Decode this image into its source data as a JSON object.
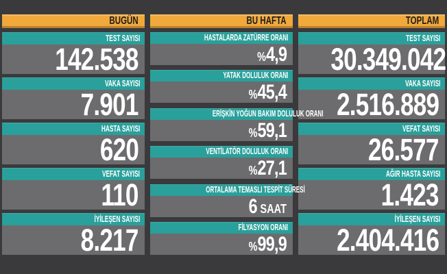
{
  "colors": {
    "background": "#3a3a3c",
    "header_bar": "#f1a93c",
    "header_text": "#1d1d1f",
    "label_bar": "#29a09b",
    "value_bar": "#6c6c6e",
    "value_text": "#ffffff"
  },
  "columns": [
    {
      "header": "BUGÜN",
      "stats": [
        {
          "label": "TEST SAYISI",
          "prefix": "",
          "value": "142.538",
          "suffix": ""
        },
        {
          "label": "VAKA SAYISI",
          "prefix": "",
          "value": "7.901",
          "suffix": ""
        },
        {
          "label": "HASTA SAYISI",
          "prefix": "",
          "value": "620",
          "suffix": ""
        },
        {
          "label": "VEFAT SAYISI",
          "prefix": "",
          "value": "110",
          "suffix": ""
        },
        {
          "label": "İYİLEŞEN SAYISI",
          "prefix": "",
          "value": "8.217",
          "suffix": ""
        }
      ]
    },
    {
      "header": "BU HAFTA",
      "stats": [
        {
          "label": "HASTALARDA ZATÜRRE ORANI",
          "prefix": "%",
          "value": "4,9",
          "suffix": ""
        },
        {
          "label": "YATAK DOLULUK ORANI",
          "prefix": "%",
          "value": "45,4",
          "suffix": ""
        },
        {
          "label": "ERİŞKİN YOĞUN BAKIM DOLULUK ORANI",
          "prefix": "%",
          "value": "59,1",
          "suffix": ""
        },
        {
          "label": "VENTİLATÖR DOLULUK ORANI",
          "prefix": "%",
          "value": "27,1",
          "suffix": ""
        },
        {
          "label": "ORTALAMA TEMASLI TESPİT SÜRESİ",
          "prefix": "",
          "value": "6",
          "suffix": "SAAT"
        },
        {
          "label": "FİLYASYON ORANI",
          "prefix": "%",
          "value": "99,9",
          "suffix": ""
        }
      ]
    },
    {
      "header": "TOPLAM",
      "stats": [
        {
          "label": "TEST SAYISI",
          "prefix": "",
          "value": "30.349.042",
          "suffix": ""
        },
        {
          "label": "VAKA SAYISI",
          "prefix": "",
          "value": "2.516.889",
          "suffix": ""
        },
        {
          "label": "VEFAT SAYISI",
          "prefix": "",
          "value": "26.577",
          "suffix": ""
        },
        {
          "label": "AĞIR HASTA SAYISI",
          "prefix": "",
          "value": "1.423",
          "suffix": ""
        },
        {
          "label": "İYİLEŞEN SAYISI",
          "prefix": "",
          "value": "2.404.416",
          "suffix": ""
        }
      ]
    }
  ],
  "chart_data": {
    "type": "table",
    "columns": [
      "BUGÜN",
      "BU HAFTA",
      "TOPLAM"
    ],
    "groups": [
      {
        "column": "BUGÜN",
        "rows": [
          {
            "label": "TEST SAYISI",
            "value": 142538,
            "display": "142.538"
          },
          {
            "label": "VAKA SAYISI",
            "value": 7901,
            "display": "7.901"
          },
          {
            "label": "HASTA SAYISI",
            "value": 620,
            "display": "620"
          },
          {
            "label": "VEFAT SAYISI",
            "value": 110,
            "display": "110"
          },
          {
            "label": "İYİLEŞEN SAYISI",
            "value": 8217,
            "display": "8.217"
          }
        ]
      },
      {
        "column": "BU HAFTA",
        "rows": [
          {
            "label": "HASTALARDA ZATÜRRE ORANI",
            "value": 4.9,
            "unit": "%",
            "display": "%4,9"
          },
          {
            "label": "YATAK DOLULUK ORANI",
            "value": 45.4,
            "unit": "%",
            "display": "%45,4"
          },
          {
            "label": "ERİŞKİN YOĞUN BAKIM DOLULUK ORANI",
            "value": 59.1,
            "unit": "%",
            "display": "%59,1"
          },
          {
            "label": "VENTİLATÖR DOLULUK ORANI",
            "value": 27.1,
            "unit": "%",
            "display": "%27,1"
          },
          {
            "label": "ORTALAMA TEMASLI TESPİT SÜRESİ",
            "value": 6,
            "unit": "SAAT",
            "display": "6 SAAT"
          },
          {
            "label": "FİLYASYON ORANI",
            "value": 99.9,
            "unit": "%",
            "display": "%99,9"
          }
        ]
      },
      {
        "column": "TOPLAM",
        "rows": [
          {
            "label": "TEST SAYISI",
            "value": 30349042,
            "display": "30.349.042"
          },
          {
            "label": "VAKA SAYISI",
            "value": 2516889,
            "display": "2.516.889"
          },
          {
            "label": "VEFAT SAYISI",
            "value": 26577,
            "display": "26.577"
          },
          {
            "label": "AĞIR HASTA SAYISI",
            "value": 1423,
            "display": "1.423"
          },
          {
            "label": "İYİLEŞEN SAYISI",
            "value": 2404416,
            "display": "2.404.416"
          }
        ]
      }
    ]
  }
}
